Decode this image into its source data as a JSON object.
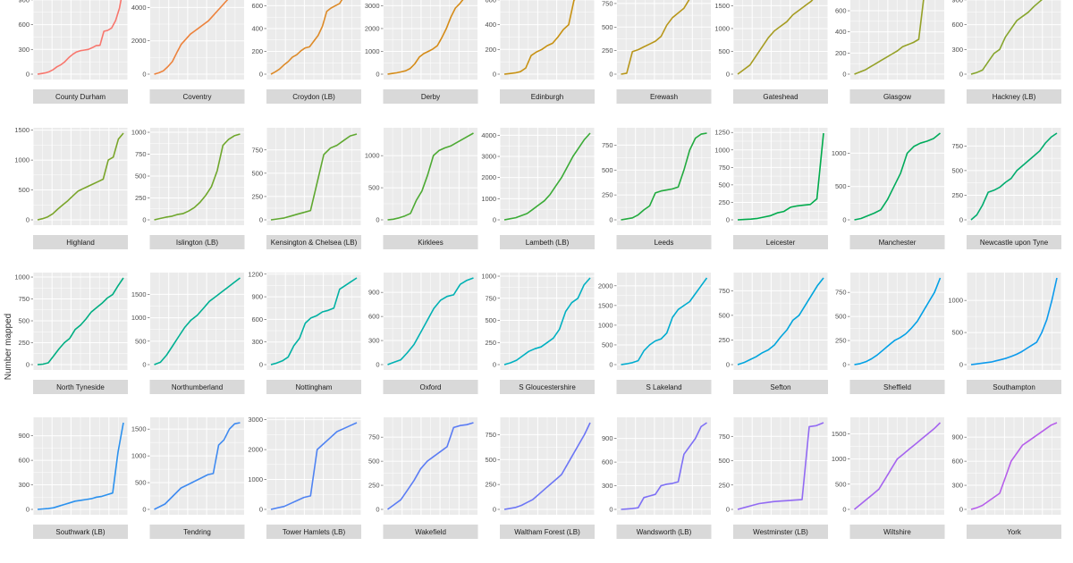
{
  "chart_data": {
    "type": "line",
    "title": "",
    "ylabel": "Number mapped",
    "xlabel": "",
    "grid": true,
    "layout": "faceted small multiples, 9 columns, free y scales",
    "panels": [
      {
        "name": "",
        "strip": "County Durham",
        "color": "#F8766D",
        "yticks": [
          0,
          300,
          600,
          900
        ],
        "ylim": [
          0,
          1050
        ],
        "y": [
          0,
          8,
          15,
          30,
          55,
          90,
          115,
          150,
          200,
          240,
          270,
          285,
          292,
          300,
          320,
          345,
          350,
          520,
          530,
          560,
          650,
          800,
          1050
        ]
      },
      {
        "name": "",
        "strip": "Coventry",
        "color": "#EC823C",
        "yticks": [
          0,
          2000,
          4000
        ],
        "ylim": [
          0,
          5200
        ],
        "y": [
          0,
          80,
          200,
          450,
          750,
          1300,
          1800,
          2100,
          2400,
          2600,
          2800,
          3000,
          3200,
          3500,
          3800,
          4100,
          4400,
          4700,
          5000,
          5200
        ]
      },
      {
        "name": "",
        "strip": "Croydon (LB)",
        "color": "#DD8A28",
        "yticks": [
          0,
          200,
          400,
          600
        ],
        "ylim": [
          0,
          760
        ],
        "y": [
          0,
          20,
          45,
          80,
          110,
          150,
          170,
          205,
          230,
          240,
          290,
          340,
          420,
          550,
          580,
          600,
          620,
          680,
          700,
          740,
          760
        ]
      },
      {
        "name": "",
        "strip": "Derby",
        "color": "#D58B17",
        "yticks": [
          0,
          1000,
          2000,
          3000
        ],
        "ylim": [
          0,
          3800
        ],
        "y": [
          0,
          30,
          60,
          100,
          150,
          250,
          450,
          750,
          900,
          1000,
          1100,
          1250,
          1600,
          2000,
          2500,
          2900,
          3100,
          3350,
          3600,
          3800
        ]
      },
      {
        "name": "",
        "strip": "Edinburgh",
        "color": "#C79112",
        "yticks": [
          0,
          200,
          400,
          600
        ],
        "ylim": [
          0,
          700
        ],
        "y": [
          0,
          5,
          10,
          20,
          50,
          150,
          180,
          200,
          230,
          250,
          300,
          360,
          400,
          600,
          620,
          630,
          700
        ]
      },
      {
        "name": "",
        "strip": "Erewash",
        "color": "#B89619",
        "yticks": [
          0,
          250,
          500,
          750
        ],
        "ylim": [
          0,
          920
        ],
        "y": [
          0,
          10,
          240,
          260,
          290,
          320,
          350,
          400,
          520,
          600,
          650,
          700,
          800,
          860,
          880,
          910
        ]
      },
      {
        "name": "",
        "strip": "Gateshead",
        "color": "#A69C21",
        "yticks": [
          0,
          500,
          1000,
          1500
        ],
        "ylim": [
          0,
          1900
        ],
        "y": [
          0,
          100,
          200,
          400,
          600,
          800,
          950,
          1050,
          1150,
          1300,
          1400,
          1500,
          1600,
          1750,
          1900
        ]
      },
      {
        "name": "",
        "strip": "Glasgow",
        "color": "#95A127",
        "yticks": [
          0,
          200,
          400,
          600
        ],
        "ylim": [
          0,
          820
        ],
        "y": [
          0,
          20,
          40,
          70,
          100,
          130,
          160,
          190,
          220,
          260,
          280,
          300,
          330,
          750,
          760,
          800,
          820
        ]
      },
      {
        "name": "",
        "strip": "Hackney (LB)",
        "color": "#86A52C",
        "yticks": [
          0,
          300,
          600,
          900
        ],
        "ylim": [
          0,
          1050
        ],
        "y": [
          0,
          20,
          50,
          150,
          250,
          300,
          450,
          550,
          650,
          700,
          750,
          820,
          880,
          940,
          1000,
          1020
        ]
      },
      {
        "name": "",
        "strip": "Highland",
        "color": "#7AA52A",
        "yticks": [
          0,
          500,
          1000,
          1500
        ],
        "ylim": [
          0,
          1450
        ],
        "y": [
          0,
          20,
          50,
          100,
          180,
          250,
          320,
          400,
          480,
          520,
          560,
          600,
          640,
          680,
          1000,
          1050,
          1350,
          1450
        ]
      },
      {
        "name": "",
        "strip": "Islington (LB)",
        "color": "#6FA72C",
        "yticks": [
          0,
          250,
          500,
          750,
          1000
        ],
        "ylim": [
          0,
          990
        ],
        "y": [
          0,
          15,
          30,
          40,
          60,
          70,
          100,
          140,
          200,
          280,
          380,
          560,
          850,
          920,
          960,
          980
        ]
      },
      {
        "name": "",
        "strip": "Kensington & Chelsea (LB)",
        "color": "#5FA830",
        "yticks": [
          0,
          250,
          500,
          750
        ],
        "ylim": [
          0,
          930
        ],
        "y": [
          0,
          10,
          20,
          40,
          60,
          80,
          100,
          400,
          700,
          770,
          800,
          850,
          900,
          920
        ]
      },
      {
        "name": "",
        "strip": "Kirklees",
        "color": "#4DAA33",
        "yticks": [
          0,
          500,
          1000
        ],
        "ylim": [
          0,
          1350
        ],
        "y": [
          0,
          10,
          30,
          60,
          100,
          300,
          450,
          700,
          1000,
          1080,
          1120,
          1150,
          1200,
          1250,
          1300,
          1350
        ]
      },
      {
        "name": "",
        "strip": "Lambeth (LB)",
        "color": "#3AAB36",
        "yticks": [
          0,
          1000,
          2000,
          3000,
          4000
        ],
        "ylim": [
          0,
          4100
        ],
        "y": [
          0,
          50,
          100,
          200,
          300,
          500,
          700,
          900,
          1200,
          1600,
          2000,
          2500,
          3000,
          3400,
          3800,
          4100
        ]
      },
      {
        "name": "",
        "strip": "Leeds",
        "color": "#21AA3E",
        "yticks": [
          0,
          250,
          500,
          750
        ],
        "ylim": [
          0,
          870
        ],
        "y": [
          0,
          10,
          20,
          50,
          100,
          140,
          270,
          290,
          300,
          310,
          330,
          500,
          700,
          820,
          860,
          870
        ]
      },
      {
        "name": "",
        "strip": "Leicester",
        "color": "#00AB4C",
        "yticks": [
          0,
          250,
          500,
          750,
          1000,
          1250
        ],
        "ylim": [
          0,
          1240
        ],
        "y": [
          0,
          5,
          10,
          20,
          40,
          60,
          100,
          120,
          180,
          200,
          210,
          220,
          300,
          1240
        ]
      },
      {
        "name": "",
        "strip": "Manchester",
        "color": "#00AB5B",
        "yticks": [
          0,
          500,
          1000
        ],
        "ylim": [
          0,
          1300
        ],
        "y": [
          0,
          20,
          60,
          100,
          150,
          300,
          500,
          700,
          1000,
          1100,
          1150,
          1180,
          1220,
          1300
        ]
      },
      {
        "name": "",
        "strip": "Newcastle upon Tyne",
        "color": "#00AC6E",
        "yticks": [
          0,
          250,
          500,
          750
        ],
        "ylim": [
          0,
          880
        ],
        "y": [
          0,
          50,
          150,
          280,
          300,
          330,
          380,
          420,
          500,
          550,
          600,
          650,
          700,
          780,
          840,
          880
        ]
      },
      {
        "name": "",
        "strip": "North Tyneside",
        "color": "#00AE82",
        "yticks": [
          0,
          250,
          500,
          750,
          1000
        ],
        "ylim": [
          0,
          990
        ],
        "y": [
          0,
          5,
          20,
          100,
          180,
          250,
          300,
          400,
          450,
          520,
          600,
          650,
          700,
          760,
          800,
          900,
          990
        ]
      },
      {
        "name": "",
        "strip": "Northumberland",
        "color": "#00B093",
        "yticks": [
          0,
          500,
          1000,
          1500
        ],
        "ylim": [
          0,
          1850
        ],
        "y": [
          0,
          50,
          200,
          400,
          600,
          800,
          950,
          1050,
          1200,
          1350,
          1450,
          1550,
          1650,
          1750,
          1850
        ]
      },
      {
        "name": "",
        "strip": "Nottingham",
        "color": "#00B1A3",
        "yticks": [
          0,
          300,
          600,
          900,
          1200
        ],
        "ylim": [
          0,
          1150
        ],
        "y": [
          0,
          20,
          50,
          100,
          250,
          350,
          550,
          620,
          650,
          700,
          720,
          750,
          1000,
          1050,
          1100,
          1150
        ]
      },
      {
        "name": "",
        "strip": "Oxford",
        "color": "#00B1B3",
        "yticks": [
          0,
          300,
          600,
          900
        ],
        "ylim": [
          0,
          1080
        ],
        "y": [
          0,
          30,
          60,
          150,
          250,
          400,
          550,
          700,
          800,
          850,
          870,
          1000,
          1050,
          1080
        ]
      },
      {
        "name": "",
        "strip": "S Gloucestershire",
        "color": "#00B0C1",
        "yticks": [
          0,
          250,
          500,
          750,
          1000
        ],
        "ylim": [
          0,
          980
        ],
        "y": [
          0,
          20,
          50,
          100,
          150,
          180,
          200,
          250,
          300,
          400,
          600,
          700,
          750,
          900,
          980
        ]
      },
      {
        "name": "",
        "strip": "S Lakeland",
        "color": "#00ACCF",
        "yticks": [
          0,
          500,
          1000,
          1500,
          2000
        ],
        "ylim": [
          0,
          2200
        ],
        "y": [
          0,
          20,
          50,
          100,
          350,
          500,
          600,
          650,
          800,
          1200,
          1400,
          1500,
          1600,
          1800,
          2000,
          2200
        ]
      },
      {
        "name": "",
        "strip": "Sefton",
        "color": "#00A5DC",
        "yticks": [
          0,
          250,
          500,
          750
        ],
        "ylim": [
          0,
          880
        ],
        "y": [
          0,
          20,
          50,
          80,
          120,
          150,
          200,
          280,
          350,
          450,
          500,
          600,
          700,
          800,
          880
        ]
      },
      {
        "name": "",
        "strip": "Sheffield",
        "color": "#00A0E6",
        "yticks": [
          0,
          250,
          500,
          750
        ],
        "ylim": [
          0,
          900
        ],
        "y": [
          0,
          10,
          30,
          60,
          100,
          150,
          200,
          250,
          280,
          320,
          380,
          450,
          550,
          650,
          750,
          900
        ]
      },
      {
        "name": "",
        "strip": "Southampton",
        "color": "#0C9AEC",
        "yticks": [
          0,
          500,
          1000
        ],
        "ylim": [
          0,
          1350
        ],
        "y": [
          0,
          10,
          20,
          30,
          40,
          60,
          80,
          100,
          130,
          160,
          200,
          250,
          300,
          350,
          500,
          700,
          1000,
          1350
        ]
      },
      {
        "name": "",
        "strip": "Southwark (LB)",
        "color": "#2B91EE",
        "yticks": [
          0,
          300,
          600,
          900
        ],
        "ylim": [
          0,
          1060
        ],
        "y": [
          0,
          5,
          10,
          20,
          40,
          60,
          80,
          100,
          110,
          120,
          130,
          150,
          160,
          180,
          200,
          700,
          1060
        ]
      },
      {
        "name": "",
        "strip": "Tendring",
        "color": "#3F8AF0",
        "yticks": [
          0,
          500,
          1000,
          1500
        ],
        "ylim": [
          0,
          1620
        ],
        "y": [
          0,
          50,
          100,
          200,
          300,
          400,
          450,
          500,
          550,
          600,
          650,
          670,
          1200,
          1300,
          1500,
          1600,
          1620
        ]
      },
      {
        "name": "",
        "strip": "Tower Hamlets (LB)",
        "color": "#4F83F2",
        "yticks": [
          0,
          1000,
          2000,
          3000
        ],
        "ylim": [
          0,
          2900
        ],
        "y": [
          0,
          50,
          100,
          200,
          300,
          400,
          450,
          2000,
          2200,
          2400,
          2600,
          2700,
          2800,
          2900
        ]
      },
      {
        "name": "",
        "strip": "Wakefield",
        "color": "#5B7CF4",
        "yticks": [
          0,
          250,
          500,
          750
        ],
        "ylim": [
          0,
          900
        ],
        "y": [
          0,
          50,
          100,
          200,
          300,
          420,
          500,
          550,
          600,
          650,
          850,
          870,
          880,
          900
        ]
      },
      {
        "name": "",
        "strip": "Waltham Forest (LB)",
        "color": "#6C76F5",
        "yticks": [
          0,
          250,
          500,
          750
        ],
        "ylim": [
          0,
          870
        ],
        "y": [
          0,
          10,
          20,
          40,
          70,
          100,
          150,
          200,
          250,
          300,
          350,
          450,
          550,
          650,
          750,
          870
        ]
      },
      {
        "name": "",
        "strip": "Wandsworth (LB)",
        "color": "#7E70F5",
        "yticks": [
          0,
          300,
          600,
          900
        ],
        "ylim": [
          0,
          1100
        ],
        "y": [
          0,
          5,
          10,
          20,
          150,
          170,
          190,
          300,
          320,
          330,
          350,
          700,
          800,
          900,
          1050,
          1100
        ]
      },
      {
        "name": "",
        "strip": "Westminster (LB)",
        "color": "#926AF3",
        "yticks": [
          0,
          250,
          500,
          750
        ],
        "ylim": [
          0,
          890
        ],
        "y": [
          0,
          20,
          40,
          60,
          70,
          80,
          85,
          90,
          95,
          100,
          850,
          860,
          890
        ]
      },
      {
        "name": "",
        "strip": "Wiltshire",
        "color": "#A564EF",
        "yticks": [
          0,
          500,
          1000,
          1500
        ],
        "ylim": [
          0,
          1720
        ],
        "y": [
          0,
          100,
          200,
          300,
          400,
          600,
          800,
          1000,
          1100,
          1200,
          1300,
          1400,
          1500,
          1600,
          1720
        ]
      },
      {
        "name": "",
        "strip": "York",
        "color": "#B65EEA",
        "yticks": [
          0,
          300,
          600,
          900
        ],
        "ylim": [
          0,
          1080
        ],
        "y": [
          0,
          20,
          50,
          100,
          150,
          200,
          400,
          600,
          700,
          800,
          850,
          900,
          950,
          1000,
          1050,
          1080
        ]
      }
    ]
  }
}
